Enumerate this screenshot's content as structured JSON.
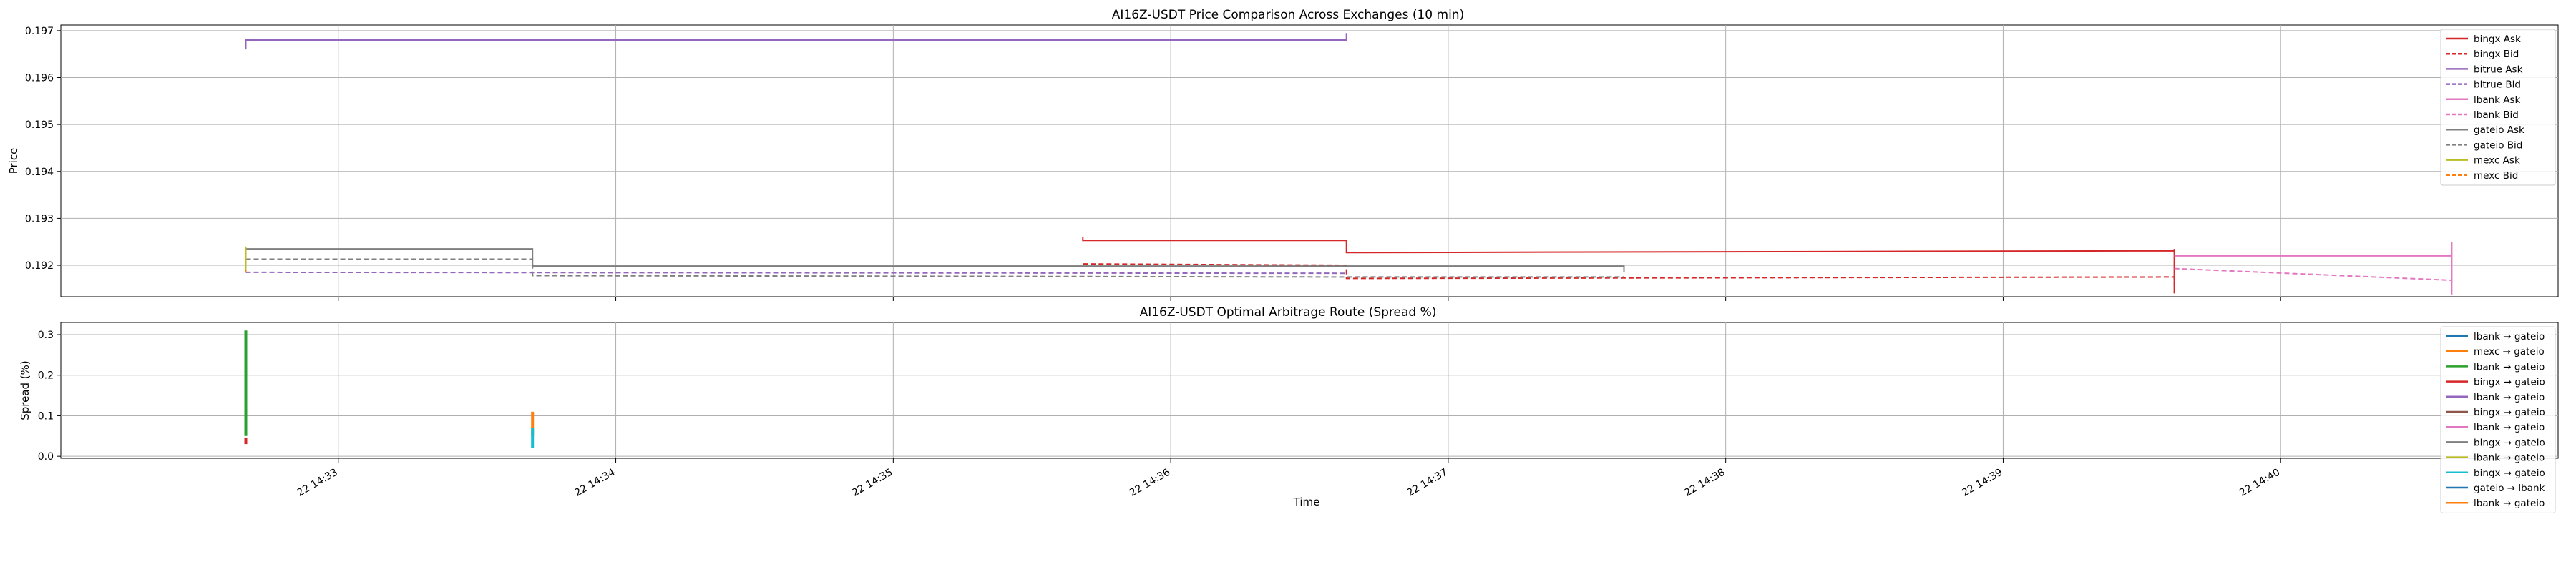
{
  "chart_data": [
    {
      "type": "line",
      "title": "AI16Z-USDT Price Comparison Across Exchanges (10 min)",
      "ylabel": "Price",
      "xlim": [
        "2025-01-22 14:32:00",
        "2025-01-22 14:41:00"
      ],
      "ylim": [
        0.19133,
        0.19712
      ],
      "yticks": [
        0.192,
        0.193,
        0.194,
        0.195,
        0.196,
        0.197
      ],
      "ytick_labels": [
        "0.192",
        "0.193",
        "0.194",
        "0.195",
        "0.196",
        "0.197"
      ],
      "grid": true,
      "legend_position": "top-right",
      "series": [
        {
          "name": "bingx Ask",
          "color": "#d62728",
          "style": "solid",
          "points": [
            [
              "14:35:41",
              0.1926
            ],
            [
              "14:35:41",
              0.19253
            ],
            [
              "14:36:38",
              0.19253
            ],
            [
              "14:36:38",
              0.19227
            ],
            [
              "14:39:37",
              0.19231
            ],
            [
              "14:39:37",
              0.1914
            ],
            [
              "14:39:37",
              0.19235
            ]
          ]
        },
        {
          "name": "bingx Bid",
          "color": "#d62728",
          "style": "dashed",
          "points": [
            [
              "14:35:41",
              0.19203
            ],
            [
              "14:36:38",
              0.192
            ],
            [
              "14:36:38",
              0.19172
            ],
            [
              "14:39:37",
              0.19175
            ],
            [
              "14:39:37",
              0.1916
            ]
          ]
        },
        {
          "name": "bitrue Ask",
          "color": "#9467bd",
          "style": "solid",
          "points": [
            [
              "14:32:40",
              0.1966
            ],
            [
              "14:32:40",
              0.1968
            ],
            [
              "14:36:38",
              0.1968
            ],
            [
              "14:36:38",
              0.19695
            ]
          ]
        },
        {
          "name": "bitrue Bid",
          "color": "#9467bd",
          "style": "dashed",
          "points": [
            [
              "14:32:40",
              0.19185
            ],
            [
              "14:36:38",
              0.19183
            ]
          ]
        },
        {
          "name": "lbank Ask",
          "color": "#e377c2",
          "style": "solid",
          "points": [
            [
              "14:39:37",
              0.1922
            ],
            [
              "14:40:37",
              0.1922
            ],
            [
              "14:40:37",
              0.19138
            ],
            [
              "14:40:37",
              0.1925
            ]
          ]
        },
        {
          "name": "lbank Bid",
          "color": "#e377c2",
          "style": "dashed",
          "points": [
            [
              "14:39:37",
              0.19193
            ],
            [
              "14:40:37",
              0.19168
            ]
          ]
        },
        {
          "name": "gateio Ask",
          "color": "#7f7f7f",
          "style": "solid",
          "points": [
            [
              "14:32:40",
              0.19235
            ],
            [
              "14:33:42",
              0.19235
            ],
            [
              "14:33:42",
              0.19198
            ],
            [
              "14:37:38",
              0.19198
            ],
            [
              "14:37:38",
              0.19185
            ]
          ]
        },
        {
          "name": "gateio Bid",
          "color": "#7f7f7f",
          "style": "dashed",
          "points": [
            [
              "14:32:40",
              0.19213
            ],
            [
              "14:33:42",
              0.19213
            ],
            [
              "14:33:42",
              0.19178
            ],
            [
              "14:36:38",
              0.19175
            ],
            [
              "14:37:38",
              0.19175
            ]
          ]
        },
        {
          "name": "mexc Ask",
          "color": "#bcbd22",
          "style": "solid",
          "points": [
            [
              "14:32:40",
              0.1924
            ],
            [
              "14:32:40",
              0.19185
            ]
          ]
        },
        {
          "name": "mexc Bid",
          "color": "#ff7f0e",
          "style": "dashed",
          "points": [
            [
              "14:32:40",
              0.1919
            ],
            [
              "14:32:40",
              0.19185
            ]
          ]
        }
      ]
    },
    {
      "type": "line",
      "title": "AI16Z-USDT Optimal Arbitrage Route (Spread %)",
      "xlabel": "Time",
      "ylabel": "Spread (%)",
      "xlim": [
        "2025-01-22 14:32:00",
        "2025-01-22 14:41:00"
      ],
      "ylim": [
        -0.005,
        0.33
      ],
      "yticks": [
        0.0,
        0.1,
        0.2,
        0.3
      ],
      "ytick_labels": [
        "0.0",
        "0.1",
        "0.2",
        "0.3"
      ],
      "xticks": [
        "14:33:00",
        "14:34:00",
        "14:35:00",
        "14:36:00",
        "14:37:00",
        "14:38:00",
        "14:39:00",
        "14:40:00"
      ],
      "xtick_labels": [
        "22 14:33",
        "22 14:34",
        "22 14:35",
        "22 14:36",
        "22 14:37",
        "22 14:38",
        "22 14:39",
        "22 14:40"
      ],
      "grid": true,
      "legend_position": "top-right",
      "series": [
        {
          "name": "lbank → gateio",
          "color": "#1f77b4",
          "points": [
            [
              "14:32:40",
              0.16
            ],
            [
              "14:32:40",
              0.21
            ]
          ]
        },
        {
          "name": "mexc → gateio",
          "color": "#ff7f0e",
          "points": [
            [
              "14:33:42",
              0.05
            ],
            [
              "14:33:42",
              0.11
            ]
          ]
        },
        {
          "name": "lbank → gateio",
          "color": "#2ca02c",
          "points": [
            [
              "14:32:40",
              0.05
            ],
            [
              "14:32:40",
              0.31
            ]
          ]
        },
        {
          "name": "bingx → gateio",
          "color": "#d62728",
          "points": [
            [
              "14:32:40",
              0.03
            ],
            [
              "14:32:40",
              0.045
            ]
          ]
        },
        {
          "name": "lbank → gateio",
          "color": "#9467bd",
          "points": []
        },
        {
          "name": "bingx → gateio",
          "color": "#8c564b",
          "points": []
        },
        {
          "name": "lbank → gateio",
          "color": "#e377c2",
          "points": []
        },
        {
          "name": "bingx → gateio",
          "color": "#7f7f7f",
          "points": []
        },
        {
          "name": "lbank → gateio",
          "color": "#bcbd22",
          "points": []
        },
        {
          "name": "bingx → gateio",
          "color": "#17becf",
          "points": [
            [
              "14:33:42",
              0.02
            ],
            [
              "14:33:42",
              0.07
            ]
          ]
        },
        {
          "name": "gateio → lbank",
          "color": "#1f77b4",
          "points": []
        },
        {
          "name": "lbank → gateio",
          "color": "#ff7f0e",
          "points": []
        }
      ]
    }
  ]
}
